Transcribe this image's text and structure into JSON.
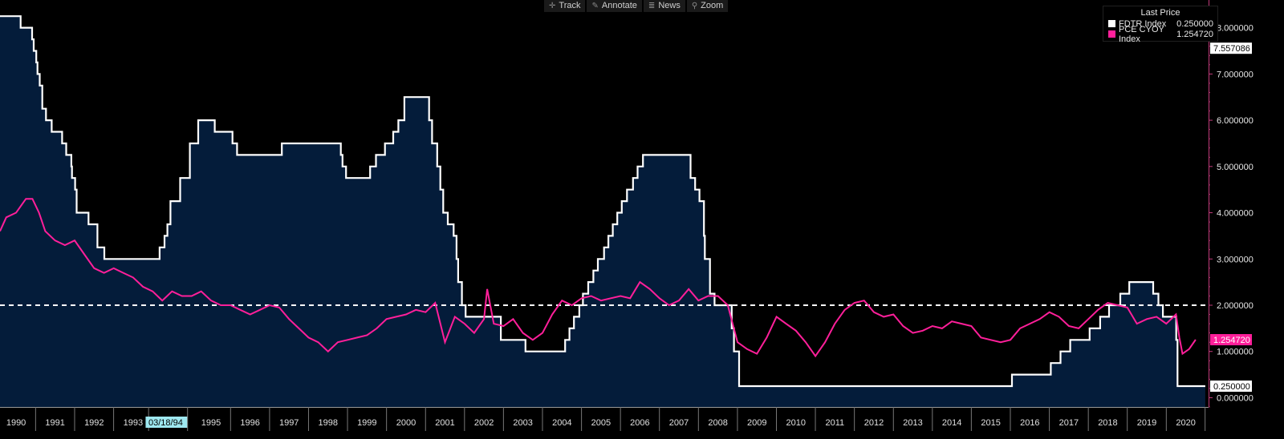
{
  "toolbar": {
    "items": [
      {
        "label": "Track",
        "icon": "crosshair-icon"
      },
      {
        "label": "Annotate",
        "icon": "pencil-icon"
      },
      {
        "label": "News",
        "icon": "news-icon"
      },
      {
        "label": "Zoom",
        "icon": "zoom-icon"
      }
    ]
  },
  "legend": {
    "title": "Last Price",
    "entries": [
      {
        "name": "FDTR Index",
        "value": "0.250000",
        "color": "#ffffff"
      },
      {
        "name": "PCE CYOY Index",
        "value": "1.254720",
        "color": "#ff1f9a"
      }
    ]
  },
  "chart_data": {
    "type": "line",
    "x_type": "date",
    "xlim": [
      "1990-01-01",
      "2020-12-31"
    ],
    "ylim": [
      -0.2,
      8.6
    ],
    "y_ticks": [
      0,
      1,
      2,
      3,
      4,
      5,
      6,
      7,
      8
    ],
    "y_tick_labels": [
      "0.000000",
      "1.000000",
      "2.000000",
      "3.000000",
      "4.000000",
      "5.000000",
      "6.000000",
      "7.000000",
      "8.000000"
    ],
    "x_tick_labels": [
      "1990",
      "1991",
      "1992",
      "1993",
      "03/18/94",
      "1995",
      "1996",
      "1997",
      "1998",
      "1999",
      "2000",
      "2001",
      "2002",
      "2003",
      "2004",
      "2005",
      "2006",
      "2007",
      "2008",
      "2009",
      "2010",
      "2011",
      "2012",
      "2013",
      "2014",
      "2015",
      "2016",
      "2017",
      "2018",
      "2019",
      "2020"
    ],
    "x_tick_dates": [
      "1990-06-01",
      "1991-06-01",
      "1992-06-01",
      "1993-06-01",
      "1994-03-18",
      "1995-06-01",
      "1996-06-01",
      "1997-06-01",
      "1998-06-01",
      "1999-06-01",
      "2000-06-01",
      "2001-06-01",
      "2002-06-01",
      "2003-06-01",
      "2004-06-01",
      "2005-06-01",
      "2006-06-01",
      "2007-06-01",
      "2008-06-01",
      "2009-06-01",
      "2010-06-01",
      "2011-06-01",
      "2012-06-01",
      "2013-06-01",
      "2014-06-01",
      "2015-06-01",
      "2016-06-01",
      "2017-06-01",
      "2018-06-01",
      "2019-06-01",
      "2020-06-01"
    ],
    "highlighted_x_label": "03/18/94",
    "reference_line": {
      "y": 2.0,
      "style": "dashed",
      "color": "#ffffff"
    },
    "right_axis_markers": [
      {
        "label": "7.557086",
        "y": 7.557086,
        "bg": "#ffffff",
        "fg": "#000000"
      },
      {
        "label": "1.254720",
        "y": 1.25472,
        "bg": "#ff1f9a",
        "fg": "#ffffff"
      },
      {
        "label": "0.250000",
        "y": 0.25,
        "bg": "#ffffff",
        "fg": "#000000"
      }
    ],
    "series": [
      {
        "name": "FDTR Index",
        "style": "step",
        "fill": "#041c3a",
        "color": "#ffffff",
        "points": [
          [
            "1990-01-01",
            8.25
          ],
          [
            "1990-07-13",
            8.0
          ],
          [
            "1990-10-29",
            7.75
          ],
          [
            "1990-11-13",
            7.5
          ],
          [
            "1990-12-07",
            7.25
          ],
          [
            "1990-12-18",
            7.0
          ],
          [
            "1991-01-08",
            6.75
          ],
          [
            "1991-02-01",
            6.25
          ],
          [
            "1991-03-08",
            6.0
          ],
          [
            "1991-04-30",
            5.75
          ],
          [
            "1991-08-06",
            5.5
          ],
          [
            "1991-09-13",
            5.25
          ],
          [
            "1991-10-31",
            5.0
          ],
          [
            "1991-11-06",
            4.75
          ],
          [
            "1991-12-06",
            4.5
          ],
          [
            "1991-12-20",
            4.0
          ],
          [
            "1992-04-09",
            3.75
          ],
          [
            "1992-07-02",
            3.25
          ],
          [
            "1992-09-04",
            3.0
          ],
          [
            "1994-02-04",
            3.25
          ],
          [
            "1994-03-22",
            3.5
          ],
          [
            "1994-04-18",
            3.75
          ],
          [
            "1994-05-17",
            4.25
          ],
          [
            "1994-08-16",
            4.75
          ],
          [
            "1994-11-15",
            5.5
          ],
          [
            "1995-02-01",
            6.0
          ],
          [
            "1995-07-06",
            5.75
          ],
          [
            "1995-12-19",
            5.5
          ],
          [
            "1996-01-31",
            5.25
          ],
          [
            "1997-03-25",
            5.5
          ],
          [
            "1998-09-29",
            5.25
          ],
          [
            "1998-10-15",
            5.0
          ],
          [
            "1998-11-17",
            4.75
          ],
          [
            "1999-06-30",
            5.0
          ],
          [
            "1999-08-24",
            5.25
          ],
          [
            "1999-11-16",
            5.5
          ],
          [
            "2000-02-02",
            5.75
          ],
          [
            "2000-03-21",
            6.0
          ],
          [
            "2000-05-16",
            6.5
          ],
          [
            "2001-01-03",
            6.0
          ],
          [
            "2001-01-31",
            5.5
          ],
          [
            "2001-03-20",
            5.0
          ],
          [
            "2001-04-18",
            4.5
          ],
          [
            "2001-05-15",
            4.0
          ],
          [
            "2001-06-27",
            3.75
          ],
          [
            "2001-08-21",
            3.5
          ],
          [
            "2001-09-17",
            3.0
          ],
          [
            "2001-10-02",
            2.5
          ],
          [
            "2001-11-06",
            2.0
          ],
          [
            "2001-12-11",
            1.75
          ],
          [
            "2002-11-06",
            1.25
          ],
          [
            "2003-06-25",
            1.0
          ],
          [
            "2004-06-30",
            1.25
          ],
          [
            "2004-08-10",
            1.5
          ],
          [
            "2004-09-21",
            1.75
          ],
          [
            "2004-11-10",
            2.0
          ],
          [
            "2004-12-14",
            2.25
          ],
          [
            "2005-02-02",
            2.5
          ],
          [
            "2005-03-22",
            2.75
          ],
          [
            "2005-05-03",
            3.0
          ],
          [
            "2005-06-30",
            3.25
          ],
          [
            "2005-08-09",
            3.5
          ],
          [
            "2005-09-20",
            3.75
          ],
          [
            "2005-11-01",
            4.0
          ],
          [
            "2005-12-13",
            4.25
          ],
          [
            "2006-01-31",
            4.5
          ],
          [
            "2006-03-28",
            4.75
          ],
          [
            "2006-05-10",
            5.0
          ],
          [
            "2006-06-29",
            5.25
          ],
          [
            "2007-09-18",
            4.75
          ],
          [
            "2007-10-31",
            4.5
          ],
          [
            "2007-12-11",
            4.25
          ],
          [
            "2008-01-22",
            3.5
          ],
          [
            "2008-01-30",
            3.0
          ],
          [
            "2008-03-18",
            2.25
          ],
          [
            "2008-04-30",
            2.0
          ],
          [
            "2008-10-08",
            1.5
          ],
          [
            "2008-10-29",
            1.0
          ],
          [
            "2008-12-16",
            0.25
          ],
          [
            "2015-12-16",
            0.5
          ],
          [
            "2016-12-14",
            0.75
          ],
          [
            "2017-03-15",
            1.0
          ],
          [
            "2017-06-14",
            1.25
          ],
          [
            "2017-12-13",
            1.5
          ],
          [
            "2018-03-21",
            1.75
          ],
          [
            "2018-06-13",
            2.0
          ],
          [
            "2018-09-26",
            2.25
          ],
          [
            "2018-12-19",
            2.5
          ],
          [
            "2019-07-31",
            2.25
          ],
          [
            "2019-09-18",
            2.0
          ],
          [
            "2019-10-30",
            1.75
          ],
          [
            "2020-03-03",
            1.25
          ],
          [
            "2020-03-15",
            0.25
          ],
          [
            "2020-11-30",
            0.25
          ]
        ]
      },
      {
        "name": "PCE CYOY Index",
        "style": "line",
        "color": "#ff1f9a",
        "points": [
          [
            "1990-01-01",
            3.6
          ],
          [
            "1990-03-01",
            3.9
          ],
          [
            "1990-06-01",
            4.0
          ],
          [
            "1990-09-01",
            4.3
          ],
          [
            "1990-11-01",
            4.3
          ],
          [
            "1991-01-01",
            4.0
          ],
          [
            "1991-03-01",
            3.6
          ],
          [
            "1991-06-01",
            3.4
          ],
          [
            "1991-09-01",
            3.3
          ],
          [
            "1991-12-01",
            3.4
          ],
          [
            "1992-03-01",
            3.1
          ],
          [
            "1992-06-01",
            2.8
          ],
          [
            "1992-09-01",
            2.7
          ],
          [
            "1992-12-01",
            2.8
          ],
          [
            "1993-03-01",
            2.7
          ],
          [
            "1993-06-01",
            2.6
          ],
          [
            "1993-09-01",
            2.4
          ],
          [
            "1993-12-01",
            2.3
          ],
          [
            "1994-03-01",
            2.1
          ],
          [
            "1994-06-01",
            2.3
          ],
          [
            "1994-09-01",
            2.2
          ],
          [
            "1994-12-01",
            2.2
          ],
          [
            "1995-03-01",
            2.3
          ],
          [
            "1995-06-01",
            2.1
          ],
          [
            "1995-09-01",
            2.0
          ],
          [
            "1995-12-01",
            2.0
          ],
          [
            "1996-03-01",
            1.9
          ],
          [
            "1996-06-01",
            1.8
          ],
          [
            "1996-09-01",
            1.9
          ],
          [
            "1996-12-01",
            2.0
          ],
          [
            "1997-03-01",
            1.95
          ],
          [
            "1997-06-01",
            1.7
          ],
          [
            "1997-09-01",
            1.5
          ],
          [
            "1997-12-01",
            1.3
          ],
          [
            "1998-03-01",
            1.2
          ],
          [
            "1998-06-01",
            1.0
          ],
          [
            "1998-09-01",
            1.2
          ],
          [
            "1998-12-01",
            1.25
          ],
          [
            "1999-03-01",
            1.3
          ],
          [
            "1999-06-01",
            1.35
          ],
          [
            "1999-09-01",
            1.5
          ],
          [
            "1999-12-01",
            1.7
          ],
          [
            "2000-03-01",
            1.75
          ],
          [
            "2000-06-01",
            1.8
          ],
          [
            "2000-09-01",
            1.9
          ],
          [
            "2000-12-01",
            1.85
          ],
          [
            "2001-03-01",
            2.05
          ],
          [
            "2001-06-01",
            1.2
          ],
          [
            "2001-09-01",
            1.75
          ],
          [
            "2001-12-01",
            1.6
          ],
          [
            "2002-03-01",
            1.4
          ],
          [
            "2002-06-01",
            1.7
          ],
          [
            "2002-07-01",
            2.35
          ],
          [
            "2002-09-01",
            1.6
          ],
          [
            "2002-12-01",
            1.55
          ],
          [
            "2003-03-01",
            1.7
          ],
          [
            "2003-06-01",
            1.4
          ],
          [
            "2003-09-01",
            1.25
          ],
          [
            "2003-12-01",
            1.4
          ],
          [
            "2004-03-01",
            1.8
          ],
          [
            "2004-06-01",
            2.1
          ],
          [
            "2004-09-01",
            2.0
          ],
          [
            "2004-12-01",
            2.15
          ],
          [
            "2005-03-01",
            2.2
          ],
          [
            "2005-06-01",
            2.1
          ],
          [
            "2005-09-01",
            2.15
          ],
          [
            "2005-12-01",
            2.2
          ],
          [
            "2006-03-01",
            2.15
          ],
          [
            "2006-06-01",
            2.5
          ],
          [
            "2006-09-01",
            2.35
          ],
          [
            "2006-12-01",
            2.15
          ],
          [
            "2007-03-01",
            2.0
          ],
          [
            "2007-06-01",
            2.1
          ],
          [
            "2007-09-01",
            2.35
          ],
          [
            "2007-12-01",
            2.1
          ],
          [
            "2008-03-01",
            2.2
          ],
          [
            "2008-06-01",
            2.2
          ],
          [
            "2008-09-01",
            2.0
          ],
          [
            "2008-12-01",
            1.2
          ],
          [
            "2009-03-01",
            1.05
          ],
          [
            "2009-06-01",
            0.95
          ],
          [
            "2009-09-01",
            1.3
          ],
          [
            "2009-12-01",
            1.75
          ],
          [
            "2010-03-01",
            1.6
          ],
          [
            "2010-06-01",
            1.45
          ],
          [
            "2010-09-01",
            1.2
          ],
          [
            "2010-12-01",
            0.9
          ],
          [
            "2011-03-01",
            1.2
          ],
          [
            "2011-06-01",
            1.6
          ],
          [
            "2011-09-01",
            1.9
          ],
          [
            "2011-12-01",
            2.05
          ],
          [
            "2012-03-01",
            2.1
          ],
          [
            "2012-06-01",
            1.85
          ],
          [
            "2012-09-01",
            1.75
          ],
          [
            "2012-12-01",
            1.8
          ],
          [
            "2013-03-01",
            1.55
          ],
          [
            "2013-06-01",
            1.4
          ],
          [
            "2013-09-01",
            1.45
          ],
          [
            "2013-12-01",
            1.55
          ],
          [
            "2014-03-01",
            1.5
          ],
          [
            "2014-06-01",
            1.65
          ],
          [
            "2014-09-01",
            1.6
          ],
          [
            "2014-12-01",
            1.55
          ],
          [
            "2015-03-01",
            1.3
          ],
          [
            "2015-06-01",
            1.25
          ],
          [
            "2015-09-01",
            1.2
          ],
          [
            "2015-12-01",
            1.25
          ],
          [
            "2016-03-01",
            1.5
          ],
          [
            "2016-06-01",
            1.6
          ],
          [
            "2016-09-01",
            1.7
          ],
          [
            "2016-12-01",
            1.85
          ],
          [
            "2017-03-01",
            1.75
          ],
          [
            "2017-06-01",
            1.55
          ],
          [
            "2017-09-01",
            1.5
          ],
          [
            "2017-12-01",
            1.7
          ],
          [
            "2018-03-01",
            1.9
          ],
          [
            "2018-06-01",
            2.05
          ],
          [
            "2018-09-01",
            2.0
          ],
          [
            "2018-12-01",
            1.95
          ],
          [
            "2019-03-01",
            1.6
          ],
          [
            "2019-06-01",
            1.7
          ],
          [
            "2019-09-01",
            1.75
          ],
          [
            "2019-12-01",
            1.6
          ],
          [
            "2020-03-01",
            1.8
          ],
          [
            "2020-04-01",
            1.3
          ],
          [
            "2020-05-01",
            0.95
          ],
          [
            "2020-07-01",
            1.05
          ],
          [
            "2020-09-01",
            1.25472
          ]
        ]
      }
    ]
  }
}
